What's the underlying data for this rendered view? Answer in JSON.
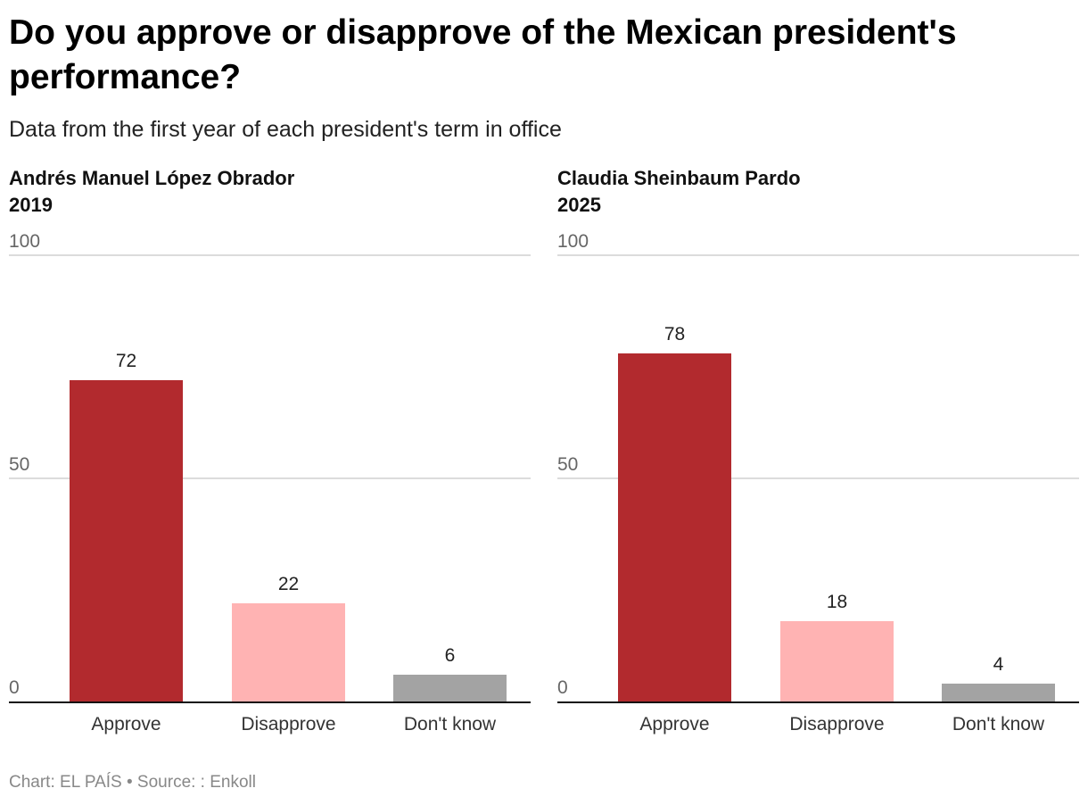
{
  "title": "Do you approve or disapprove of the Mexican president's performance?",
  "subtitle": "Data from the first year of each president's term in office",
  "footer": "Chart: EL PAÍS • Source: : Enkoll",
  "chart_data": [
    {
      "type": "bar",
      "title": "Andrés Manuel López Obrador",
      "year": "2019",
      "categories": [
        "Approve",
        "Disapprove",
        "Don't know"
      ],
      "values": [
        72,
        22,
        6
      ],
      "colors": [
        "#b22a2e",
        "#ffb3b3",
        "#a3a3a3"
      ],
      "ylim": [
        0,
        100
      ],
      "yticks": [
        0,
        50,
        100
      ],
      "grid": true
    },
    {
      "type": "bar",
      "title": "Claudia Sheinbaum Pardo",
      "year": "2025",
      "categories": [
        "Approve",
        "Disapprove",
        "Don't know"
      ],
      "values": [
        78,
        18,
        4
      ],
      "colors": [
        "#b22a2e",
        "#ffb3b3",
        "#a3a3a3"
      ],
      "ylim": [
        0,
        100
      ],
      "yticks": [
        0,
        50,
        100
      ],
      "grid": true
    }
  ]
}
